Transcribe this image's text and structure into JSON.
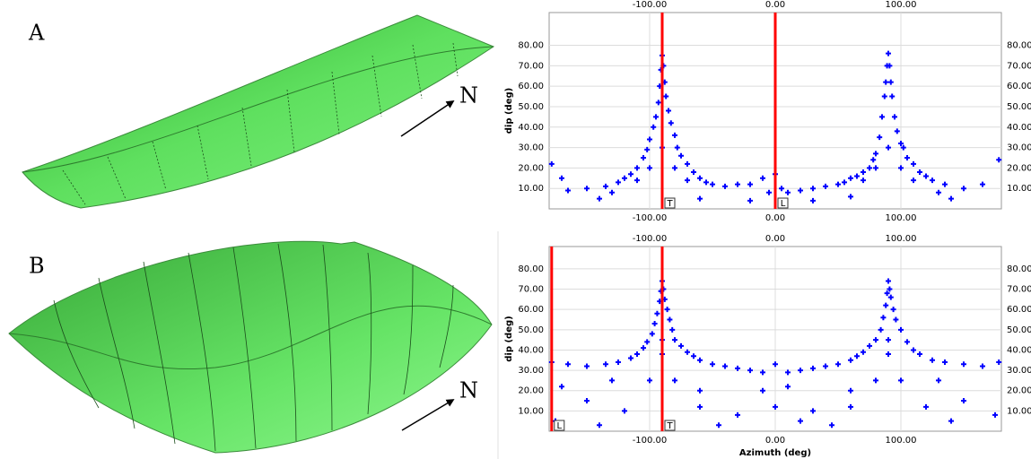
{
  "panel_labels": [
    "A",
    "B"
  ],
  "north_label": "N",
  "chart_data": [
    {
      "type": "scatter",
      "y_label": "dip (deg)",
      "marker": "+",
      "grid": true,
      "xlim": [
        -180,
        180
      ],
      "ylim": [
        0,
        96
      ],
      "xticks": [
        {
          "value": -100,
          "label": "-100.00"
        },
        {
          "value": 0,
          "label": "0.00"
        },
        {
          "value": 100,
          "label": "100.00"
        }
      ],
      "yticks": [
        {
          "value": 10,
          "label": "10.00"
        },
        {
          "value": 20,
          "label": "20.00"
        },
        {
          "value": 30,
          "label": "30.00"
        },
        {
          "value": 40,
          "label": "40.00"
        },
        {
          "value": 50,
          "label": "50.00"
        },
        {
          "value": 60,
          "label": "60.00"
        },
        {
          "value": 70,
          "label": "70.00"
        },
        {
          "value": 80,
          "label": "80.00"
        }
      ],
      "vline_color": "#ff0000",
      "vlines": [
        {
          "x": -90,
          "label": "T"
        },
        {
          "x": 0,
          "label": "L"
        }
      ],
      "series": [
        {
          "color": "#0000ff",
          "x": [
            -90,
            -89,
            -91,
            -88,
            -92,
            -87,
            -93,
            -85,
            -95,
            -83,
            -97,
            -80,
            -100,
            -78,
            -102,
            -75,
            -105,
            -70,
            -110,
            -65,
            -115,
            -60,
            -120,
            -55,
            -125,
            -50,
            -135,
            -40,
            -150,
            -30,
            -165,
            -20,
            -178,
            -10,
            -5,
            0,
            5,
            10,
            20,
            30,
            40,
            50,
            55,
            60,
            65,
            70,
            75,
            78,
            80,
            83,
            85,
            87,
            88,
            89,
            90,
            91,
            92,
            93,
            95,
            97,
            100,
            102,
            105,
            110,
            115,
            120,
            125,
            135,
            150,
            165,
            178,
            -140,
            -60,
            -20,
            30,
            140,
            60,
            -90,
            90,
            -170,
            -100,
            -80,
            80,
            100,
            -110,
            -70,
            70,
            110,
            -130,
            130
          ],
          "values": [
            75,
            70,
            68,
            62,
            60,
            55,
            52,
            48,
            45,
            42,
            40,
            36,
            34,
            30,
            29,
            26,
            25,
            22,
            20,
            18,
            17,
            15,
            15,
            13,
            13,
            12,
            11,
            11,
            10,
            12,
            9,
            12,
            22,
            15,
            8,
            17,
            10,
            8,
            9,
            10,
            11,
            12,
            13,
            15,
            16,
            18,
            20,
            24,
            27,
            35,
            45,
            55,
            62,
            70,
            76,
            70,
            62,
            55,
            45,
            38,
            32,
            30,
            25,
            22,
            18,
            16,
            14,
            12,
            10,
            12,
            24,
            5,
            5,
            4,
            4,
            5,
            6,
            30,
            30,
            15,
            20,
            20,
            20,
            20,
            14,
            14,
            14,
            14,
            8,
            8
          ]
        }
      ]
    },
    {
      "type": "scatter",
      "y_label": "dip (deg)",
      "x_label": "Azimuth (deg)",
      "marker": "+",
      "grid": true,
      "xlim": [
        -180,
        180
      ],
      "ylim": [
        0,
        91
      ],
      "xticks": [
        {
          "value": -100,
          "label": "-100.00"
        },
        {
          "value": 0,
          "label": "0.00"
        },
        {
          "value": 100,
          "label": "100.00"
        }
      ],
      "yticks": [
        {
          "value": 10,
          "label": "10.00"
        },
        {
          "value": 20,
          "label": "20.00"
        },
        {
          "value": 30,
          "label": "30.00"
        },
        {
          "value": 40,
          "label": "40.00"
        },
        {
          "value": 50,
          "label": "50.00"
        },
        {
          "value": 60,
          "label": "60.00"
        },
        {
          "value": 70,
          "label": "70.00"
        },
        {
          "value": 80,
          "label": "80.00"
        }
      ],
      "vline_color": "#ff0000",
      "vlines": [
        {
          "x": -178,
          "label": "L"
        },
        {
          "x": -90,
          "label": "T"
        }
      ],
      "series": [
        {
          "color": "#0000ff",
          "x": [
            -90,
            -89,
            -91,
            -88,
            -92,
            -86,
            -94,
            -84,
            -96,
            -82,
            -98,
            -80,
            -102,
            -75,
            -105,
            -70,
            -110,
            -65,
            -115,
            -60,
            -125,
            -50,
            -135,
            -40,
            -150,
            -30,
            -165,
            -20,
            -178,
            -10,
            0,
            10,
            20,
            30,
            40,
            50,
            60,
            65,
            70,
            75,
            80,
            84,
            86,
            88,
            89,
            90,
            91,
            92,
            94,
            96,
            100,
            105,
            110,
            115,
            125,
            135,
            150,
            165,
            178,
            -170,
            -150,
            -120,
            -60,
            -30,
            -10,
            10,
            30,
            60,
            120,
            150,
            -175,
            -140,
            -100,
            -80,
            -45,
            45,
            80,
            100,
            140,
            175,
            -90,
            90,
            -90,
            90,
            -60,
            60,
            -130,
            130,
            0,
            20
          ],
          "values": [
            74,
            70,
            69,
            65,
            64,
            60,
            58,
            55,
            53,
            50,
            48,
            45,
            44,
            42,
            41,
            39,
            38,
            37,
            36,
            35,
            34,
            33,
            33,
            32,
            32,
            31,
            33,
            30,
            34,
            29,
            33,
            29,
            30,
            31,
            32,
            33,
            35,
            37,
            39,
            42,
            45,
            50,
            56,
            62,
            68,
            74,
            70,
            66,
            60,
            55,
            50,
            44,
            40,
            38,
            35,
            34,
            33,
            32,
            34,
            22,
            15,
            10,
            12,
            8,
            20,
            22,
            10,
            12,
            12,
            15,
            5,
            3,
            25,
            25,
            3,
            3,
            25,
            25,
            5,
            8,
            45,
            45,
            38,
            38,
            20,
            20,
            25,
            25,
            12,
            5
          ]
        }
      ]
    }
  ]
}
